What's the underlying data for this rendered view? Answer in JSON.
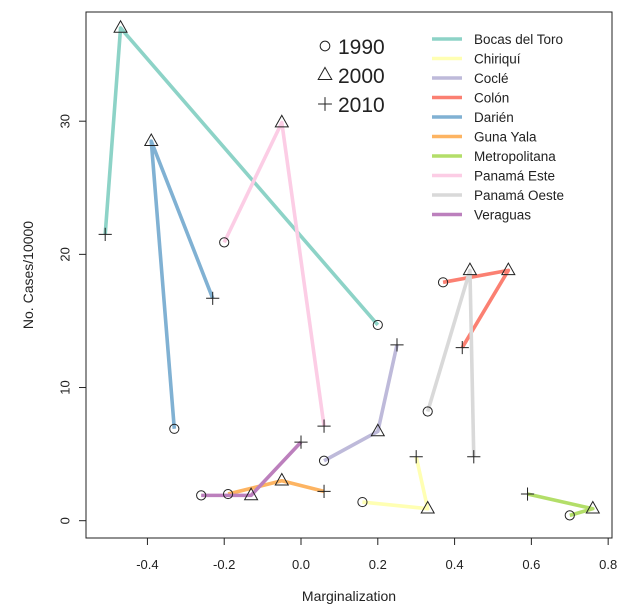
{
  "chart_data": {
    "type": "line",
    "xlabel": "Marginalization",
    "ylabel": "No. Cases/10000",
    "xlim": [
      -0.56,
      0.81
    ],
    "ylim": [
      -1.3,
      38.2
    ],
    "x_ticks": [
      -0.4,
      -0.2,
      0.0,
      0.2,
      0.4,
      0.6,
      0.8
    ],
    "x_tick_labels": [
      "-0.4",
      "-0.2",
      "0.0",
      "0.2",
      "0.4",
      "0.6",
      "0.8"
    ],
    "y_ticks": [
      0,
      10,
      20,
      30
    ],
    "y_tick_labels": [
      "0",
      "10",
      "20",
      "30"
    ],
    "grid": false,
    "legend_position": "top-right",
    "year_symbols": [
      {
        "year": "1990",
        "marker": "circle",
        "label": "1990"
      },
      {
        "year": "2000",
        "marker": "triangle",
        "label": "2000"
      },
      {
        "year": "2010",
        "marker": "plus",
        "label": "2010"
      }
    ],
    "series": [
      {
        "name": "Bocas del Toro",
        "color": "#8dd3c7",
        "points": {
          "1990": [
            0.2,
            14.7
          ],
          "2000": [
            -0.47,
            37.0
          ],
          "2010": [
            -0.51,
            21.5
          ]
        }
      },
      {
        "name": "Chiriquí",
        "color": "#ffffb3",
        "points": {
          "1990": [
            0.16,
            1.4
          ],
          "2000": [
            0.33,
            0.9
          ],
          "2010": [
            0.3,
            4.8
          ]
        }
      },
      {
        "name": "Coclé",
        "color": "#bebada",
        "points": {
          "1990": [
            0.06,
            4.5
          ],
          "2000": [
            0.2,
            6.7
          ],
          "2010": [
            0.25,
            13.2
          ]
        }
      },
      {
        "name": "Colón",
        "color": "#fb8072",
        "points": {
          "1990": [
            0.37,
            17.9
          ],
          "2000": [
            0.54,
            18.8
          ],
          "2010": [
            0.42,
            13.0
          ]
        }
      },
      {
        "name": "Darién",
        "color": "#80b1d3",
        "points": {
          "1990": [
            -0.33,
            6.9
          ],
          "2000": [
            -0.39,
            28.5
          ],
          "2010": [
            -0.23,
            16.7
          ]
        }
      },
      {
        "name": "Guna Yala",
        "color": "#fdb462",
        "points": {
          "1990": [
            -0.19,
            2.0
          ],
          "2000": [
            -0.05,
            3.0
          ],
          "2010": [
            0.06,
            2.2
          ]
        }
      },
      {
        "name": "Metropolitana",
        "color": "#b3de69",
        "points": {
          "1990": [
            0.7,
            0.4
          ],
          "2000": [
            0.76,
            0.9
          ],
          "2010": [
            0.59,
            2.0
          ]
        }
      },
      {
        "name": "Panamá Este",
        "color": "#fccde5",
        "points": {
          "1990": [
            -0.2,
            20.9
          ],
          "2000": [
            -0.05,
            29.9
          ],
          "2010": [
            0.06,
            7.1
          ]
        }
      },
      {
        "name": "Panamá Oeste",
        "color": "#d9d9d9",
        "points": {
          "1990": [
            0.33,
            8.2
          ],
          "2000": [
            0.44,
            18.8
          ],
          "2010": [
            0.45,
            4.8
          ]
        }
      },
      {
        "name": "Veraguas",
        "color": "#bc80bd",
        "points": {
          "1990": [
            -0.26,
            1.9
          ],
          "2000": [
            -0.13,
            1.9
          ],
          "2010": [
            0.0,
            5.9
          ]
        }
      }
    ]
  }
}
